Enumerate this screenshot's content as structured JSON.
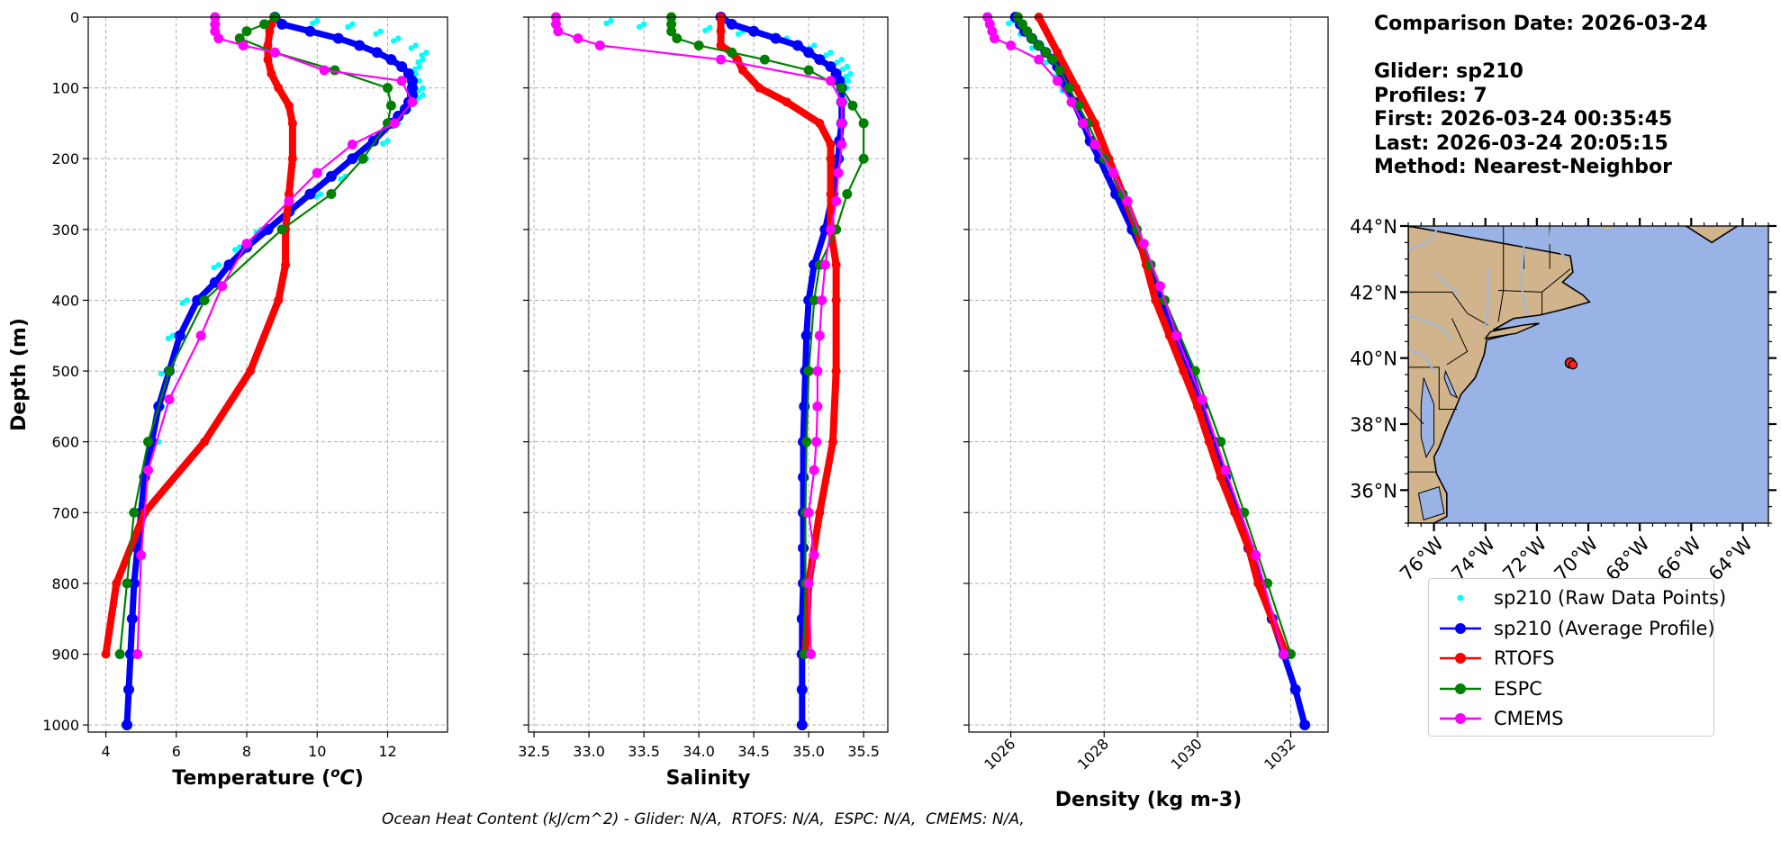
{
  "info_panel": {
    "comparison_date": "Comparison Date: 2026-03-24",
    "glider": "Glider: sp210",
    "profiles": "Profiles: 7",
    "first": "First: 2026-03-24 00:35:45",
    "last": "Last: 2026-03-24 20:05:15",
    "method": "Method: Nearest-Neighbor"
  },
  "footer_text": "Ocean Heat Content (kJ/cm^2) - Glider: N/A,  RTOFS: N/A,  ESPC: N/A,  CMEMS: N/A,",
  "colors": {
    "raw": "#00ffff",
    "average": "#0000ff",
    "rtofs": "#ff0000",
    "espc": "#008000",
    "cmems": "#ff00ff",
    "land": "#d2b48c",
    "ocean": "#99b3e6",
    "grid": "#b0b0b0"
  },
  "legend": [
    {
      "label": "sp210 (Raw Data Points)",
      "color": "#00ffff",
      "style": "dot"
    },
    {
      "label": "sp210 (Average Profile)",
      "color": "#0000ff",
      "style": "line-marker"
    },
    {
      "label": "RTOFS",
      "color": "#ff0000",
      "style": "line-marker"
    },
    {
      "label": "ESPC",
      "color": "#008000",
      "style": "line-marker"
    },
    {
      "label": "CMEMS",
      "color": "#ff00ff",
      "style": "line-marker"
    }
  ],
  "chart_data": [
    {
      "type": "line",
      "xlabel": "Temperature (°C)",
      "ylabel": "Depth (m)",
      "xlim": [
        3.5,
        13.7
      ],
      "ylim": [
        1010,
        0
      ],
      "xticks": [
        4,
        6,
        8,
        10,
        12
      ],
      "yticks": [
        0,
        100,
        200,
        300,
        400,
        500,
        600,
        700,
        800,
        900,
        1000
      ],
      "grid": true,
      "series": [
        {
          "name": "RTOFS",
          "color": "#ff0000",
          "depth": [
            0,
            10,
            20,
            40,
            60,
            80,
            100,
            125,
            150,
            200,
            250,
            300,
            350,
            400,
            500,
            600,
            700,
            800,
            900
          ],
          "values": [
            8.8,
            8.7,
            8.65,
            8.6,
            8.6,
            8.7,
            8.9,
            9.2,
            9.3,
            9.3,
            9.2,
            9.1,
            9.1,
            8.9,
            8.1,
            6.8,
            5.1,
            4.3,
            4.0
          ]
        },
        {
          "name": "ESPC",
          "color": "#008000",
          "depth": [
            0,
            10,
            20,
            30,
            50,
            75,
            100,
            125,
            150,
            200,
            250,
            300,
            400,
            500,
            600,
            700,
            800,
            900
          ],
          "values": [
            8.8,
            8.5,
            8.0,
            7.8,
            8.8,
            10.5,
            12.0,
            12.1,
            12.0,
            11.3,
            10.4,
            9.0,
            6.8,
            5.8,
            5.2,
            4.8,
            4.6,
            4.4
          ]
        },
        {
          "name": "CMEMS",
          "color": "#ff00ff",
          "depth": [
            0,
            10,
            20,
            30,
            40,
            50,
            75,
            90,
            120,
            150,
            180,
            220,
            260,
            320,
            380,
            450,
            540,
            640,
            760,
            900
          ],
          "values": [
            7.1,
            7.1,
            7.1,
            7.2,
            7.9,
            8.8,
            10.2,
            12.4,
            12.7,
            12.2,
            11.0,
            10.0,
            9.2,
            8.0,
            7.3,
            6.7,
            5.8,
            5.2,
            5.0,
            4.9
          ]
        },
        {
          "name": "sp210 (Average Profile)",
          "color": "#0000ff",
          "depth": [
            0,
            10,
            20,
            30,
            40,
            50,
            60,
            70,
            80,
            90,
            100,
            110,
            120,
            130,
            140,
            150,
            175,
            200,
            225,
            250,
            275,
            300,
            325,
            350,
            375,
            400,
            450,
            500,
            550,
            600,
            650,
            700,
            750,
            800,
            850,
            900,
            950,
            1000
          ],
          "values": [
            8.8,
            9.0,
            9.8,
            10.6,
            11.2,
            11.7,
            12.1,
            12.4,
            12.6,
            12.7,
            12.7,
            12.7,
            12.6,
            12.5,
            12.3,
            12.1,
            11.6,
            11.0,
            10.4,
            9.8,
            9.2,
            8.6,
            8.0,
            7.5,
            7.1,
            6.6,
            6.1,
            5.8,
            5.5,
            5.3,
            5.1,
            5.0,
            4.9,
            4.8,
            4.75,
            4.7,
            4.65,
            4.6
          ]
        },
        {
          "name": "sp210 (Raw Data Points)",
          "color": "#00ffff",
          "style": "scatter",
          "depth": [
            5,
            10,
            20,
            30,
            40,
            50,
            60,
            70,
            80,
            90,
            100,
            110,
            120,
            130,
            150,
            175,
            200,
            225,
            250,
            275,
            300,
            325,
            350,
            400,
            450,
            500,
            550,
            600
          ],
          "values": [
            10.0,
            11.0,
            11.8,
            12.3,
            12.8,
            13.1,
            13.0,
            12.9,
            12.8,
            12.9,
            13.0,
            13.0,
            12.8,
            12.6,
            12.3,
            12.0,
            11.4,
            10.8,
            10.1,
            9.3,
            8.4,
            7.8,
            7.2,
            6.3,
            5.9,
            5.7,
            5.6,
            5.5
          ]
        }
      ]
    },
    {
      "type": "line",
      "xlabel": "Salinity",
      "xlim": [
        32.45,
        35.72
      ],
      "ylim": [
        1010,
        0
      ],
      "xticks": [
        32.5,
        33.0,
        33.5,
        34.0,
        34.5,
        35.0,
        35.5
      ],
      "yticks": [
        0,
        100,
        200,
        300,
        400,
        500,
        600,
        700,
        800,
        900,
        1000
      ],
      "grid": true,
      "series": [
        {
          "name": "RTOFS",
          "color": "#ff0000",
          "depth": [
            0,
            20,
            40,
            50,
            60,
            75,
            100,
            120,
            150,
            180,
            200,
            250,
            300,
            350,
            400,
            500,
            600,
            700,
            800,
            900
          ],
          "values": [
            34.2,
            34.2,
            34.2,
            34.3,
            34.35,
            34.4,
            34.55,
            34.8,
            35.1,
            35.2,
            35.2,
            35.2,
            35.2,
            35.25,
            35.25,
            35.25,
            35.22,
            35.1,
            35.0,
            34.97
          ]
        },
        {
          "name": "ESPC",
          "color": "#008000",
          "depth": [
            0,
            10,
            20,
            30,
            40,
            50,
            60,
            75,
            100,
            125,
            150,
            200,
            250,
            300,
            350,
            400,
            500,
            600,
            700,
            800,
            900
          ],
          "values": [
            33.75,
            33.75,
            33.75,
            33.8,
            34.0,
            34.3,
            34.6,
            35.0,
            35.3,
            35.4,
            35.5,
            35.5,
            35.35,
            35.25,
            35.1,
            35.05,
            35.0,
            34.98,
            34.97,
            34.97,
            34.96
          ]
        },
        {
          "name": "CMEMS",
          "color": "#ff00ff",
          "depth": [
            0,
            10,
            20,
            30,
            40,
            60,
            90,
            120,
            150,
            180,
            220,
            260,
            300,
            350,
            400,
            450,
            500,
            550,
            600,
            640,
            700,
            760,
            800,
            900
          ],
          "values": [
            32.7,
            32.7,
            32.72,
            32.9,
            33.1,
            34.2,
            35.2,
            35.3,
            35.3,
            35.3,
            35.27,
            35.25,
            35.2,
            35.15,
            35.12,
            35.1,
            35.08,
            35.08,
            35.07,
            35.05,
            35.0,
            35.05,
            35.0,
            35.02
          ]
        },
        {
          "name": "sp210 (Average Profile)",
          "color": "#0000ff",
          "depth": [
            0,
            10,
            20,
            30,
            40,
            50,
            60,
            70,
            80,
            90,
            100,
            120,
            150,
            175,
            200,
            250,
            300,
            350,
            400,
            450,
            500,
            550,
            600,
            650,
            700,
            750,
            800,
            850,
            900,
            950,
            1000
          ],
          "values": [
            34.2,
            34.3,
            34.5,
            34.7,
            34.9,
            35.0,
            35.1,
            35.2,
            35.25,
            35.28,
            35.3,
            35.3,
            35.3,
            35.28,
            35.27,
            35.22,
            35.15,
            35.05,
            35.0,
            34.98,
            34.97,
            34.96,
            34.95,
            34.95,
            34.95,
            34.95,
            34.95,
            34.94,
            34.94,
            34.94,
            34.94
          ]
        },
        {
          "name": "sp210 (Raw Data Points)",
          "color": "#00ffff",
          "style": "scatter",
          "depth": [
            5,
            10,
            15,
            20,
            30,
            40,
            50,
            60,
            70,
            80,
            90,
            100,
            120,
            150,
            180,
            200,
            250,
            300
          ],
          "values": [
            33.2,
            33.5,
            34.1,
            34.4,
            34.8,
            35.05,
            35.2,
            35.3,
            35.35,
            35.38,
            35.36,
            35.35,
            35.33,
            35.33,
            35.32,
            35.3,
            35.25,
            35.18
          ]
        }
      ]
    },
    {
      "type": "line",
      "xlabel": "Density (kg m-3)",
      "xlim": [
        1025.1,
        1032.8
      ],
      "ylim": [
        1010,
        0
      ],
      "xticks": [
        1026,
        1028,
        1030,
        1032
      ],
      "yticks": [
        0,
        100,
        200,
        300,
        400,
        500,
        600,
        700,
        800,
        900,
        1000
      ],
      "grid": true,
      "series": [
        {
          "name": "RTOFS",
          "color": "#ff0000",
          "depth": [
            0,
            50,
            100,
            150,
            200,
            250,
            300,
            350,
            400,
            450,
            500,
            550,
            600,
            650,
            700,
            750,
            800,
            900
          ],
          "values": [
            1026.6,
            1027.0,
            1027.4,
            1027.8,
            1028.1,
            1028.4,
            1028.7,
            1028.9,
            1029.1,
            1029.4,
            1029.7,
            1030.0,
            1030.25,
            1030.5,
            1030.8,
            1031.1,
            1031.3,
            1031.9
          ]
        },
        {
          "name": "ESPC",
          "color": "#008000",
          "depth": [
            0,
            10,
            20,
            30,
            40,
            50,
            60,
            75,
            100,
            125,
            150,
            200,
            250,
            300,
            350,
            400,
            500,
            600,
            700,
            800,
            900
          ],
          "values": [
            1026.15,
            1026.25,
            1026.35,
            1026.45,
            1026.6,
            1026.75,
            1026.9,
            1027.05,
            1027.25,
            1027.45,
            1027.65,
            1028.0,
            1028.4,
            1028.7,
            1029.0,
            1029.3,
            1029.95,
            1030.5,
            1031.0,
            1031.5,
            1032.0
          ]
        },
        {
          "name": "CMEMS",
          "color": "#ff00ff",
          "depth": [
            0,
            10,
            20,
            30,
            40,
            60,
            90,
            120,
            150,
            180,
            220,
            260,
            320,
            380,
            450,
            540,
            640,
            760,
            900
          ],
          "values": [
            1025.5,
            1025.55,
            1025.6,
            1025.65,
            1026.0,
            1026.6,
            1027.0,
            1027.3,
            1027.55,
            1027.8,
            1028.2,
            1028.5,
            1028.85,
            1029.2,
            1029.55,
            1030.1,
            1030.6,
            1031.25,
            1031.85
          ]
        },
        {
          "name": "sp210 (Average Profile)",
          "color": "#0000ff",
          "depth": [
            0,
            10,
            20,
            30,
            40,
            50,
            60,
            70,
            80,
            90,
            100,
            120,
            150,
            175,
            200,
            250,
            300,
            350,
            400,
            450,
            500,
            550,
            600,
            650,
            700,
            750,
            800,
            850,
            900,
            950,
            1000
          ],
          "values": [
            1026.1,
            1026.2,
            1026.3,
            1026.45,
            1026.6,
            1026.75,
            1026.9,
            1027.0,
            1027.1,
            1027.15,
            1027.2,
            1027.35,
            1027.55,
            1027.7,
            1027.9,
            1028.25,
            1028.6,
            1028.95,
            1029.25,
            1029.55,
            1029.85,
            1030.1,
            1030.35,
            1030.6,
            1030.85,
            1031.1,
            1031.35,
            1031.6,
            1031.85,
            1032.1,
            1032.3
          ]
        },
        {
          "name": "sp210 (Raw Data Points)",
          "color": "#00ffff",
          "style": "scatter",
          "depth": [
            5,
            20,
            40,
            60,
            80,
            100
          ],
          "values": [
            1026.05,
            1026.3,
            1026.55,
            1026.85,
            1027.05,
            1027.2
          ]
        }
      ]
    },
    {
      "type": "map",
      "xticks": [
        "76°W",
        "74°W",
        "72°W",
        "70°W",
        "68°W",
        "66°W",
        "64°W"
      ],
      "yticks": [
        "44°N",
        "42°N",
        "40°N",
        "38°N",
        "36°N"
      ],
      "lon_range": [
        -77.0,
        -63.0
      ],
      "lat_range": [
        35.0,
        44.0
      ],
      "glider_location": {
        "lon": -70.7,
        "lat": 39.85
      }
    }
  ]
}
